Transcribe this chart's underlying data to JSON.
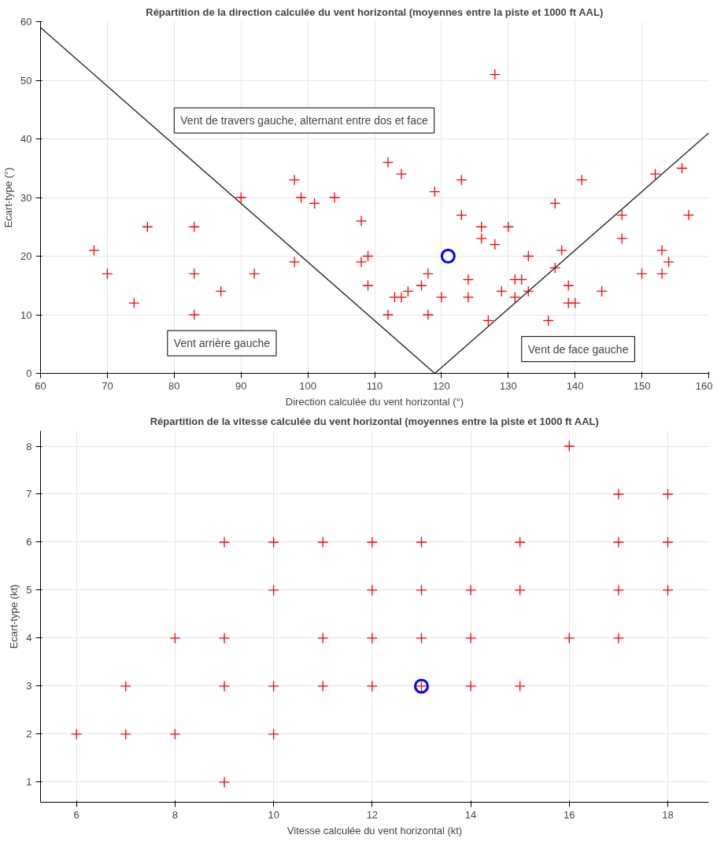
{
  "chart_data": [
    {
      "type": "scatter",
      "title": "Répartition de la direction calculée du vent horizontal (moyennes entre la piste et 1000 ft AAL)",
      "xlabel": "Direction calculée du vent horizontal (°)",
      "ylabel": "Ecart-type (°)",
      "xlim": [
        60,
        160
      ],
      "ylim": [
        0,
        60
      ],
      "xticks": [
        60,
        70,
        80,
        90,
        100,
        110,
        120,
        130,
        140,
        150,
        160
      ],
      "yticks": [
        0,
        10,
        20,
        30,
        40,
        50,
        60
      ],
      "grid": true,
      "series": [
        {
          "color": "#ff0000",
          "marker": "cross",
          "x": [
            68,
            70,
            74,
            76,
            83,
            83,
            83,
            87,
            90,
            92,
            98,
            98,
            99,
            101,
            104,
            108,
            108,
            109,
            109,
            112,
            112,
            113,
            114,
            114,
            115,
            117,
            118,
            118,
            119,
            120,
            123,
            123,
            124,
            124,
            126,
            126,
            127,
            128,
            128,
            129,
            130,
            131,
            131,
            132,
            133,
            133,
            136,
            137,
            137,
            138,
            139,
            139,
            140,
            141,
            144,
            147,
            147,
            150,
            152,
            153,
            153,
            154,
            156,
            157
          ],
          "values": [
            21,
            17,
            12,
            25,
            25,
            17,
            10,
            14,
            30,
            17,
            33,
            19,
            30,
            29,
            30,
            26,
            19,
            20,
            15,
            36,
            10,
            13,
            13,
            34,
            14,
            15,
            17,
            10,
            31,
            13,
            33,
            27,
            16,
            13,
            25,
            23,
            9,
            22,
            51,
            14,
            25,
            13,
            16,
            16,
            14,
            20,
            9,
            29,
            18,
            21,
            15,
            12,
            12,
            33,
            14,
            27,
            23,
            17,
            34,
            21,
            17,
            19,
            35,
            27
          ]
        },
        {
          "color": "#0000ff",
          "marker": "circle",
          "x": [
            121
          ],
          "values": [
            20
          ]
        },
        {
          "type": "line",
          "color": "#333333",
          "marker": "none",
          "x": [
            60,
            119,
            160
          ],
          "values": [
            59,
            0,
            41
          ]
        }
      ],
      "annotations": [
        "Vent de travers gauche, alternant entre dos et face",
        "Vent arrière gauche",
        "Vent de face gauche"
      ]
    },
    {
      "type": "scatter",
      "title": "Répartition de la vitesse calculée du vent horizontal (moyennes entre la piste et 1000 ft AAL)",
      "xlabel": "Vitesse calculée du vent horizontal (kt)",
      "ylabel": "Ecart-type (kt)",
      "xlim": [
        5.27,
        18.83
      ],
      "ylim": [
        0.58,
        8.32
      ],
      "xticks": [
        6,
        8,
        10,
        12,
        14,
        16,
        18
      ],
      "yticks": [
        1,
        2,
        3,
        4,
        5,
        6,
        7,
        8
      ],
      "grid": true,
      "series": [
        {
          "color": "#ff0000",
          "marker": "cross",
          "x": [
            16,
            17,
            18,
            9,
            10,
            11,
            12,
            13,
            15,
            17,
            18,
            10,
            12,
            13,
            14,
            15,
            17,
            18,
            8,
            9,
            11,
            12,
            13,
            14,
            16,
            17,
            7,
            9,
            10,
            11,
            12,
            13,
            14,
            15,
            6,
            7,
            8,
            10,
            9
          ],
          "values": [
            8,
            7,
            7,
            6,
            6,
            6,
            6,
            6,
            6,
            6,
            6,
            5,
            5,
            5,
            5,
            5,
            5,
            5,
            4,
            4,
            4,
            4,
            4,
            4,
            4,
            4,
            3,
            3,
            3,
            3,
            3,
            3,
            3,
            3,
            2,
            2,
            2,
            2,
            1
          ]
        },
        {
          "color": "#0000ff",
          "marker": "circle",
          "x": [
            13
          ],
          "values": [
            3
          ]
        }
      ]
    }
  ]
}
